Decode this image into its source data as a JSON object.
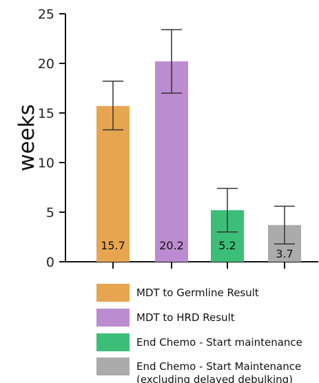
{
  "chart_data": {
    "type": "bar",
    "ylabel": "weeks",
    "ylim": [
      0,
      25
    ],
    "yticks": [
      "0",
      "5",
      "10",
      "15",
      "20",
      "25"
    ],
    "grid": false,
    "legend_position": "bottom",
    "series": [
      {
        "name": "MDT to Germline Result",
        "value": 15.7,
        "value_label": "15.7",
        "error_low": 13.3,
        "error_high": 18.2,
        "color": "#E8A550"
      },
      {
        "name": "MDT to HRD Result",
        "value": 20.2,
        "value_label": "20.2",
        "error_low": 17.0,
        "error_high": 23.4,
        "color": "#BC8CD0"
      },
      {
        "name": "End Chemo - Start maintenance",
        "value": 5.2,
        "value_label": "5.2",
        "error_low": 3.0,
        "error_high": 7.4,
        "color": "#3DBE78"
      },
      {
        "name": "End Chemo - Start Maintenance",
        "name_line2": "(excluding delayed debulking)",
        "value": 3.7,
        "value_label": "3.7",
        "error_low": 1.8,
        "error_high": 5.6,
        "color": "#ABABAB"
      }
    ]
  }
}
